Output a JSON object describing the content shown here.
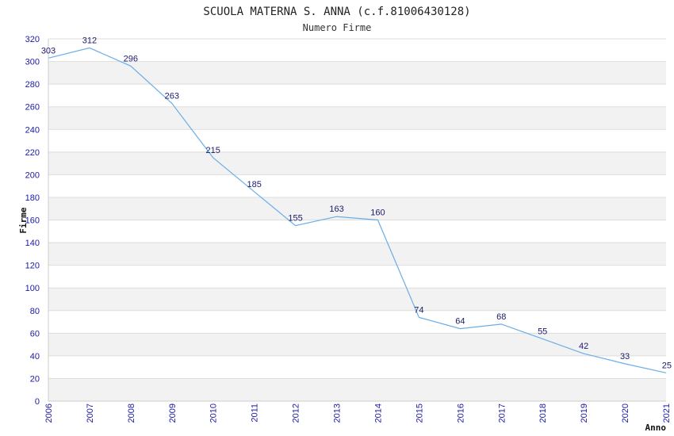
{
  "chart_data": {
    "type": "line",
    "title": "SCUOLA MATERNA S. ANNA (c.f.81006430128)",
    "subtitle": "Numero Firme",
    "xlabel": "Anno",
    "ylabel": "Firme",
    "x": [
      "2006",
      "2007",
      "2008",
      "2009",
      "2010",
      "2011",
      "2012",
      "2013",
      "2014",
      "2015",
      "2016",
      "2017",
      "2018",
      "2019",
      "2020",
      "2021"
    ],
    "series": [
      {
        "values": [
          303,
          312,
          296,
          263,
          215,
          185,
          155,
          163,
          160,
          74,
          64,
          68,
          55,
          42,
          33,
          25
        ]
      }
    ],
    "ylim": [
      0,
      320
    ],
    "yticks": [
      0,
      20,
      40,
      60,
      80,
      100,
      120,
      140,
      160,
      180,
      200,
      220,
      240,
      260,
      280,
      300,
      320
    ],
    "grid": true,
    "colors": {
      "line": "#6aaee8",
      "band": "#f2f2f2",
      "grid": "#dddddd",
      "tick": "#1a1aa6",
      "label": "#1a1a6e"
    }
  }
}
